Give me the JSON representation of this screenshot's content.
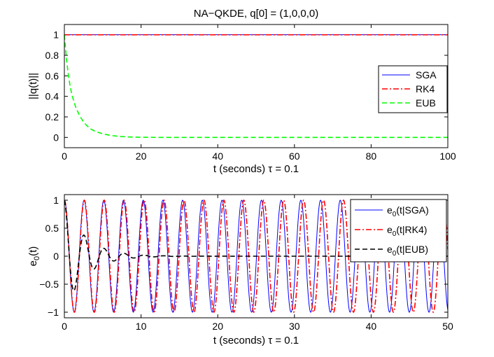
{
  "chart_data": [
    {
      "type": "line",
      "title": "NA−QKDE, q[0] = (1,0,0,0)",
      "xlabel": "t  (seconds)  τ = 0.1",
      "ylabel": "||q(t)||",
      "xlim": [
        0,
        100
      ],
      "ylim": [
        -0.1,
        1.1
      ],
      "xticks": [
        0,
        20,
        40,
        60,
        80,
        100
      ],
      "xtick_labels": [
        "0",
        "20",
        "40",
        "60",
        "80",
        "100"
      ],
      "yticks": [
        0,
        0.2,
        0.4,
        0.6,
        0.8,
        1
      ],
      "ytick_labels": [
        "0",
        "0.2",
        "0.4",
        "0.6",
        "0.8",
        "1"
      ],
      "legend_position": "center-right",
      "series": [
        {
          "name": "SGA",
          "color": "#0000ff",
          "style": "solid",
          "x": [
            0,
            100
          ],
          "values": [
            1,
            1
          ]
        },
        {
          "name": "RK4",
          "color": "#ff0000",
          "style": "dashdot",
          "x": [
            0,
            100
          ],
          "values": [
            1,
            1
          ]
        },
        {
          "name": "EUB",
          "color": "#00ff00",
          "style": "dashed",
          "x": [
            0,
            0.5,
            1,
            1.5,
            2,
            3,
            4,
            5,
            6,
            7,
            8,
            10,
            12,
            14,
            16,
            18,
            20,
            25,
            30,
            100
          ],
          "values": [
            1,
            0.78,
            0.62,
            0.5,
            0.41,
            0.29,
            0.21,
            0.15,
            0.11,
            0.08,
            0.06,
            0.035,
            0.02,
            0.011,
            0.006,
            0.003,
            0.002,
            0.0,
            0.0,
            0.0
          ]
        }
      ]
    },
    {
      "type": "line",
      "title": "",
      "xlabel": "t  (seconds)    τ = 0.1",
      "ylabel": "e",
      "ylabel_sub": "0",
      "ylabel_suffix": "(t)",
      "xlim": [
        0,
        50
      ],
      "ylim": [
        -1.1,
        1.1
      ],
      "xticks": [
        0,
        10,
        20,
        30,
        40,
        50
      ],
      "xtick_labels": [
        "0",
        "10",
        "20",
        "30",
        "40",
        "50"
      ],
      "yticks": [
        -1,
        -0.5,
        0,
        0.5,
        1
      ],
      "ytick_labels": [
        "−1",
        "−0.5",
        "0",
        "0.5",
        "1"
      ],
      "legend_position": "top-right",
      "series": [
        {
          "name": "e0(t|SGA)",
          "label_main": "e",
          "label_sub": "0",
          "label_rest": "(t|SGA)",
          "color": "#0000ff",
          "style": "solid",
          "model": "cosine",
          "amplitude": 1,
          "period": 2.57,
          "t_range": [
            0,
            50
          ]
        },
        {
          "name": "e0(t|RK4)",
          "label_main": "e",
          "label_sub": "0",
          "label_rest": "(t|RK4)",
          "color": "#ff0000",
          "style": "dashdot",
          "model": "cosine",
          "amplitude": 1,
          "period": 2.6,
          "t_range": [
            0,
            50
          ]
        },
        {
          "name": "e0(t|EUB)",
          "label_main": "e",
          "label_sub": "0",
          "label_rest": "(t|EUB)",
          "color": "#000000",
          "style": "dashed",
          "model": "damped_cosine",
          "amplitude": 1,
          "period": 2.6,
          "decay_rate": 0.38,
          "t_range": [
            0,
            50
          ]
        }
      ]
    }
  ]
}
